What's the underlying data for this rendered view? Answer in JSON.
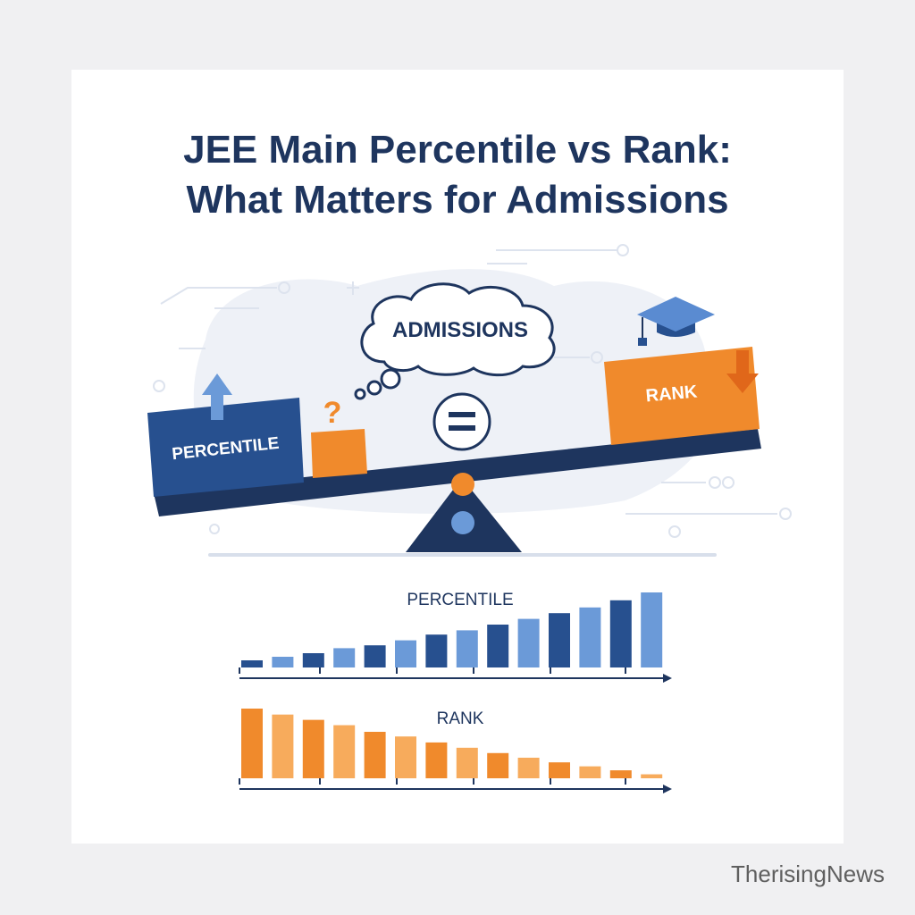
{
  "title": {
    "line1": "JEE Main Percentile vs Rank:",
    "line2": "What Matters for Admissions"
  },
  "scale": {
    "left_block_label": "PERCENTILE",
    "right_block_label": "RANK",
    "cloud_label": "ADMISSIONS",
    "question_mark": "?",
    "equals_symbol": "=",
    "icons": [
      "arrow-up-icon",
      "arrow-down-icon",
      "graduation-cap-icon",
      "question-mark-icon",
      "equals-icon",
      "thought-cloud-icon"
    ]
  },
  "chart_data": [
    {
      "type": "bar",
      "title": "PERCENTILE",
      "trend": "increasing",
      "values": [
        1,
        1.5,
        2,
        2.7,
        3.1,
        3.8,
        4.6,
        5.2,
        6,
        6.8,
        7.6,
        8.4,
        9.4,
        10.5
      ]
    },
    {
      "type": "bar",
      "title": "RANK",
      "trend": "decreasing",
      "values": [
        10.5,
        9.6,
        8.8,
        8,
        7,
        6.3,
        5.4,
        4.6,
        3.8,
        3.1,
        2.4,
        1.8,
        1.2,
        0.6
      ]
    }
  ],
  "colors": {
    "navy": "#1e355e",
    "blue_dark": "#27508f",
    "blue_light": "#6b9ad8",
    "orange": "#f08a2c",
    "orange_light": "#f7ab5c"
  },
  "watermark": "TherisingNews"
}
